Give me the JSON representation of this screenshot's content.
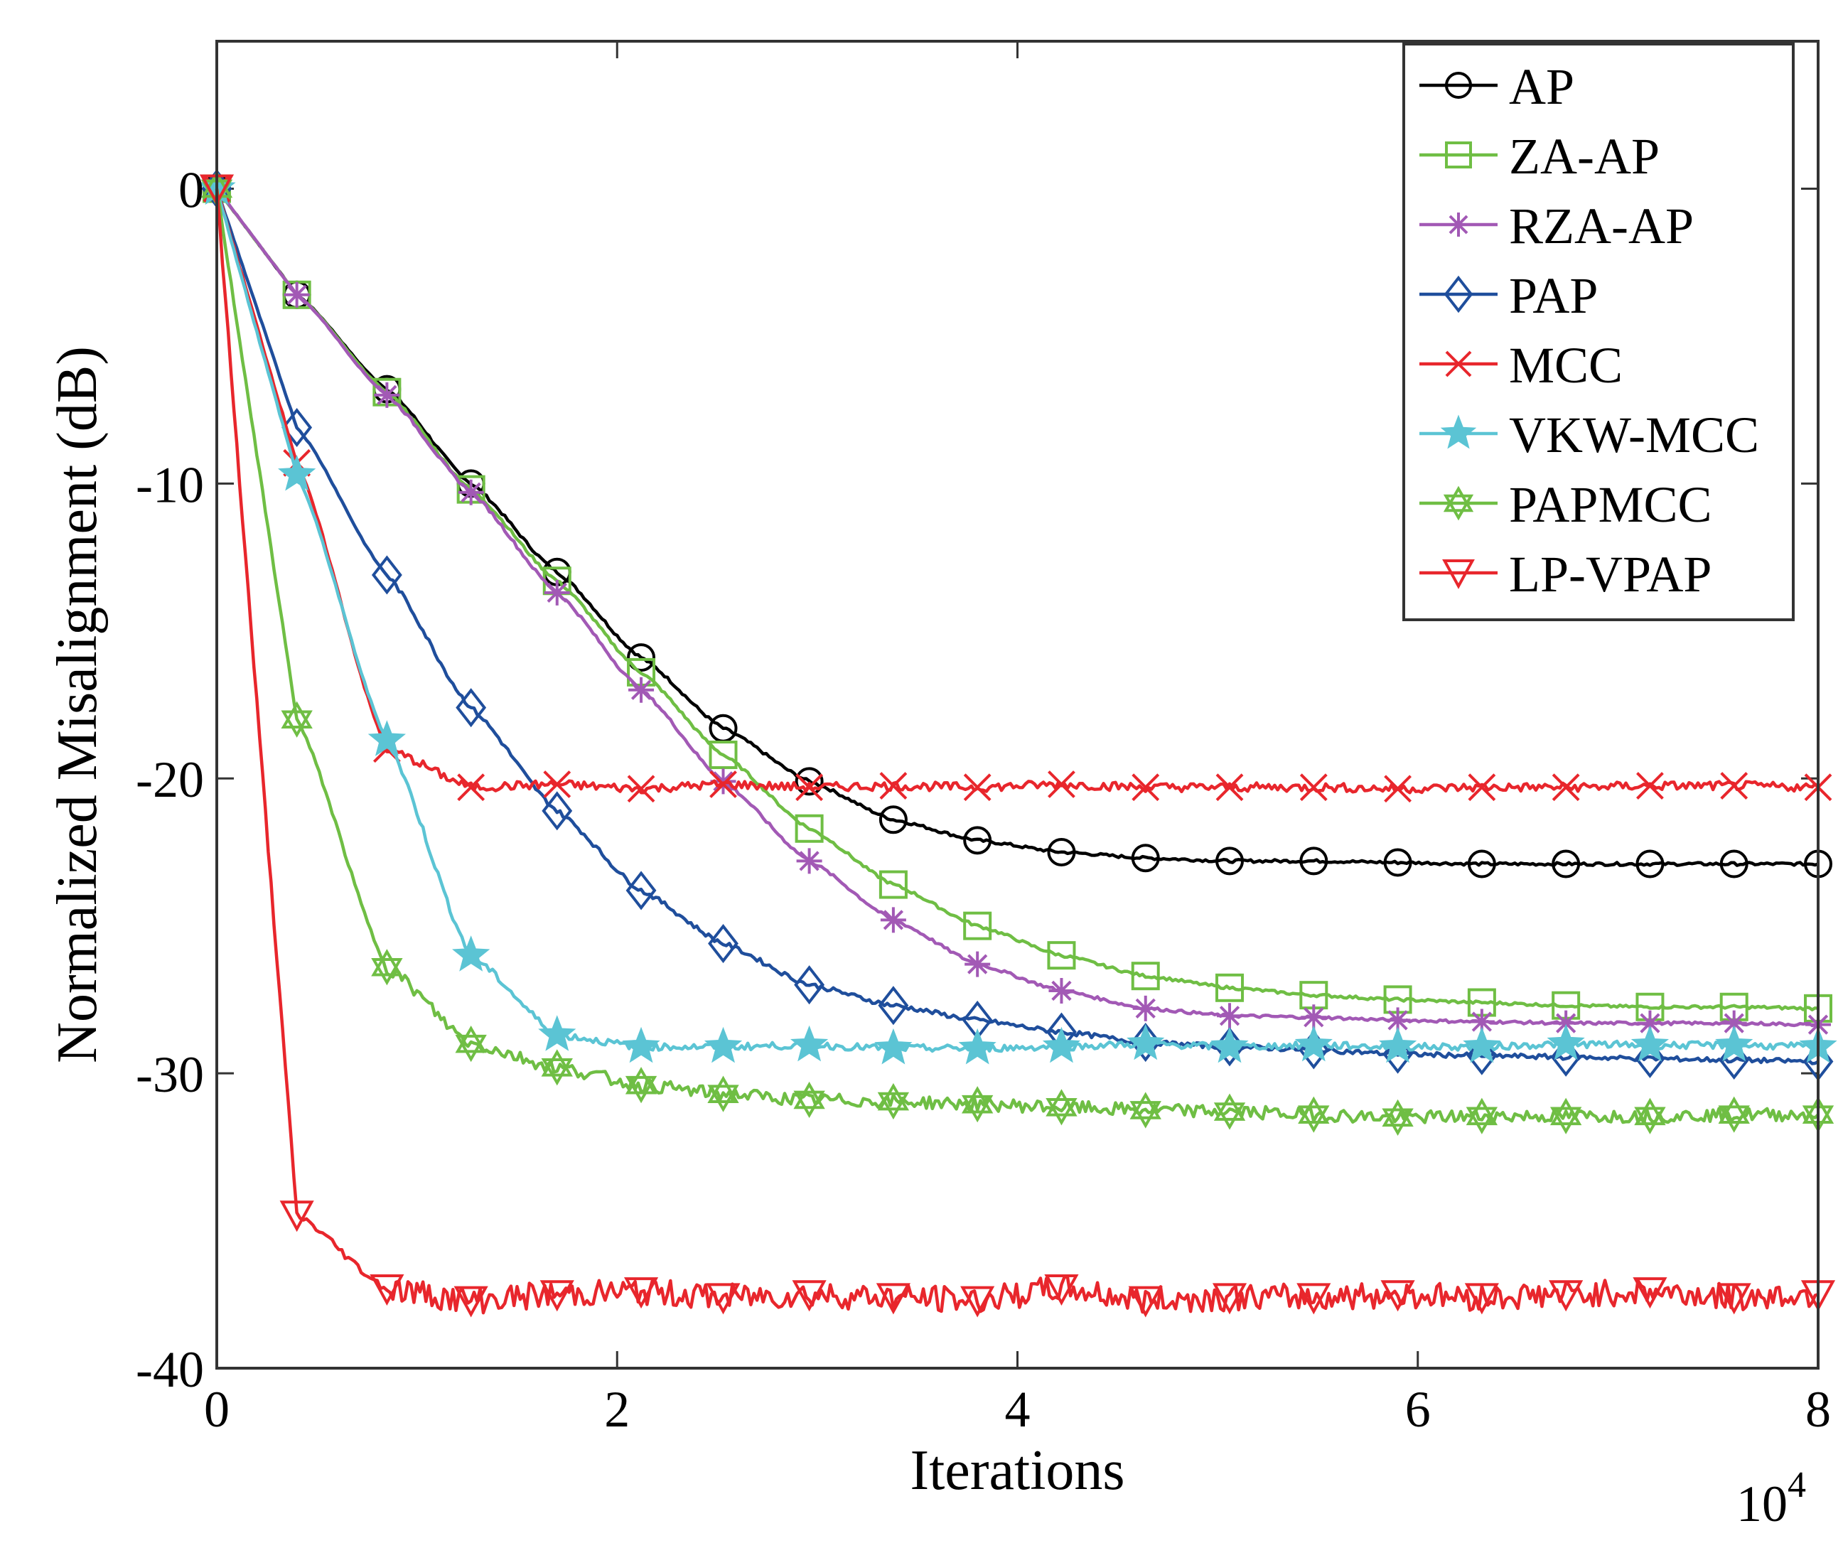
{
  "chart_data": {
    "type": "line",
    "title": "",
    "xlabel": "Iterations",
    "ylabel": "Normalized Misalignment (dB)",
    "x_exponent_label": "10",
    "x_exponent_power": "4",
    "xlim": [
      0,
      8
    ],
    "ylim": [
      -40,
      5
    ],
    "xticks": [
      0,
      2,
      4,
      6,
      8
    ],
    "xtick_labels": [
      "0",
      "2",
      "4",
      "6",
      "8"
    ],
    "yticks": [
      0,
      -10,
      -20,
      -30,
      -40
    ],
    "ytick_labels": [
      "0",
      "-10",
      "-20",
      "-30",
      "-40"
    ],
    "legend_position": "top-right",
    "series": [
      {
        "name": "AP",
        "color": "#000000",
        "marker": "circle",
        "x": [
          0,
          0.4,
          0.85,
          1.27,
          1.7,
          2.12,
          2.53,
          2.96,
          3.38,
          3.8,
          4.22,
          4.64,
          5.06,
          5.48,
          5.9,
          6.32,
          6.74,
          7.16,
          7.58,
          8.0
        ],
        "y": [
          0,
          -3.6,
          -6.8,
          -10.0,
          -13.0,
          -15.9,
          -18.3,
          -20.1,
          -21.4,
          -22.1,
          -22.5,
          -22.7,
          -22.8,
          -22.8,
          -22.85,
          -22.9,
          -22.9,
          -22.9,
          -22.9,
          -22.9
        ]
      },
      {
        "name": "ZA-AP",
        "color": "#6fbe44",
        "marker": "square",
        "x": [
          0,
          0.4,
          0.85,
          1.27,
          1.7,
          2.12,
          2.53,
          2.96,
          3.38,
          3.8,
          4.22,
          4.64,
          5.06,
          5.48,
          5.9,
          6.32,
          6.74,
          7.16,
          7.58,
          8.0
        ],
        "y": [
          0,
          -3.6,
          -6.9,
          -10.2,
          -13.3,
          -16.4,
          -19.2,
          -21.7,
          -23.6,
          -25.0,
          -26.0,
          -26.7,
          -27.1,
          -27.35,
          -27.5,
          -27.6,
          -27.7,
          -27.75,
          -27.75,
          -27.8
        ]
      },
      {
        "name": "RZA-AP",
        "color": "#a259b5",
        "marker": "asterisk",
        "x": [
          0,
          0.4,
          0.85,
          1.27,
          1.7,
          2.12,
          2.53,
          2.96,
          3.38,
          3.8,
          4.22,
          4.64,
          5.06,
          5.48,
          5.9,
          6.32,
          6.74,
          7.16,
          7.58,
          8.0
        ],
        "y": [
          0,
          -3.6,
          -7.0,
          -10.3,
          -13.7,
          -17.0,
          -20.1,
          -22.8,
          -24.8,
          -26.3,
          -27.2,
          -27.8,
          -28.05,
          -28.1,
          -28.2,
          -28.25,
          -28.3,
          -28.3,
          -28.3,
          -28.35
        ]
      },
      {
        "name": "PAP",
        "color": "#1f4e9c",
        "marker": "diamond",
        "x": [
          0,
          0.4,
          0.85,
          1.27,
          1.7,
          2.12,
          2.53,
          2.96,
          3.38,
          3.8,
          4.22,
          4.64,
          5.06,
          5.48,
          5.9,
          6.32,
          6.74,
          7.16,
          7.58,
          8.0
        ],
        "y": [
          0,
          -8.1,
          -13.1,
          -17.6,
          -21.1,
          -23.8,
          -25.6,
          -27.0,
          -27.7,
          -28.2,
          -28.6,
          -28.95,
          -29.1,
          -29.2,
          -29.35,
          -29.4,
          -29.45,
          -29.5,
          -29.55,
          -29.6
        ]
      },
      {
        "name": "MCC",
        "color": "#e8262c",
        "marker": "x",
        "x": [
          0,
          0.4,
          0.85,
          1.27,
          1.7,
          2.12,
          2.53,
          2.96,
          3.38,
          3.8,
          4.22,
          4.64,
          5.06,
          5.48,
          5.9,
          6.32,
          6.74,
          7.16,
          7.58,
          8.0
        ],
        "y": [
          0,
          -9.3,
          -19.0,
          -20.3,
          -20.2,
          -20.35,
          -20.2,
          -20.3,
          -20.25,
          -20.3,
          -20.2,
          -20.3,
          -20.3,
          -20.3,
          -20.35,
          -20.3,
          -20.3,
          -20.25,
          -20.25,
          -20.3
        ]
      },
      {
        "name": "VKW-MCC",
        "color": "#5bc4d4",
        "marker": "star",
        "x": [
          0,
          0.4,
          0.85,
          1.27,
          1.7,
          2.12,
          2.53,
          2.96,
          3.38,
          3.8,
          4.22,
          4.64,
          5.06,
          5.48,
          5.9,
          6.32,
          6.74,
          7.16,
          7.58,
          8.0
        ],
        "y": [
          0,
          -9.7,
          -18.7,
          -26.0,
          -28.7,
          -29.1,
          -29.1,
          -29.05,
          -29.15,
          -29.15,
          -29.1,
          -29.0,
          -29.1,
          -29.05,
          -29.1,
          -29.1,
          -29.0,
          -29.05,
          -29.05,
          -29.1
        ]
      },
      {
        "name": "PAPMCC",
        "color": "#6fbe44",
        "marker": "hexagram",
        "x": [
          0,
          0.4,
          0.85,
          1.27,
          1.7,
          2.12,
          2.53,
          2.96,
          3.38,
          3.8,
          4.22,
          4.64,
          5.06,
          5.48,
          5.9,
          6.32,
          6.74,
          7.16,
          7.58,
          8.0
        ],
        "y": [
          0,
          -18.0,
          -26.4,
          -29.0,
          -29.8,
          -30.4,
          -30.7,
          -30.9,
          -30.95,
          -31.05,
          -31.15,
          -31.25,
          -31.3,
          -31.4,
          -31.5,
          -31.45,
          -31.45,
          -31.45,
          -31.4,
          -31.4
        ]
      },
      {
        "name": "LP-VPAP",
        "color": "#e8262c",
        "marker": "triangle-down",
        "x": [
          0,
          0.4,
          0.85,
          1.27,
          1.7,
          2.12,
          2.53,
          2.96,
          3.38,
          3.8,
          4.22,
          4.64,
          5.06,
          5.48,
          5.9,
          6.32,
          6.74,
          7.16,
          7.58,
          8.0
        ],
        "y": [
          0,
          -34.8,
          -37.3,
          -37.7,
          -37.5,
          -37.4,
          -37.6,
          -37.5,
          -37.6,
          -37.7,
          -37.3,
          -37.7,
          -37.6,
          -37.6,
          -37.5,
          -37.6,
          -37.5,
          -37.4,
          -37.6,
          -37.5
        ]
      }
    ]
  }
}
